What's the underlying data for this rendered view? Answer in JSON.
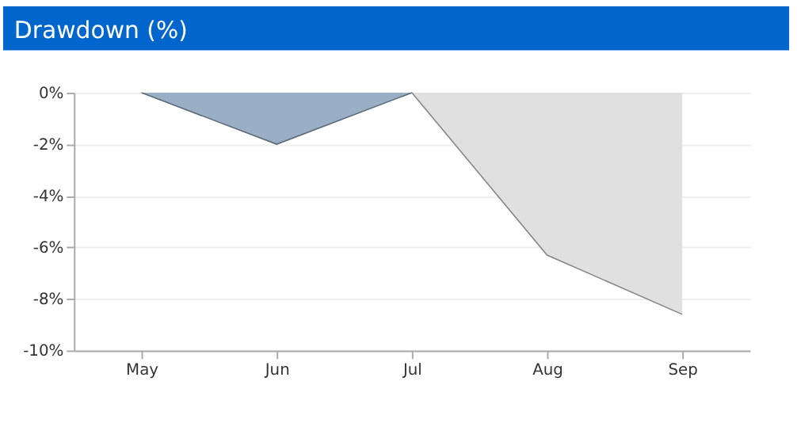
{
  "chart_data": {
    "type": "area",
    "title": "Drawdown (%)",
    "categories": [
      "May",
      "Jun",
      "Jul",
      "Aug",
      "Sep"
    ],
    "series": [
      {
        "color": "#9aafc6",
        "values": [
          0,
          -2,
          0,
          null,
          null
        ]
      },
      {
        "color": "#e0e0e0",
        "values": [
          null,
          null,
          0,
          -6.3,
          -8.6
        ]
      }
    ],
    "ylim": [
      -10,
      0
    ],
    "yticks": [
      {
        "value": 0,
        "label": "0%"
      },
      {
        "value": -2,
        "label": "-2%"
      },
      {
        "value": -4,
        "label": "-4%"
      },
      {
        "value": -6,
        "label": "-6%"
      },
      {
        "value": -8,
        "label": "-8%"
      },
      {
        "value": -10,
        "label": "-10%"
      }
    ],
    "grid": "y"
  }
}
